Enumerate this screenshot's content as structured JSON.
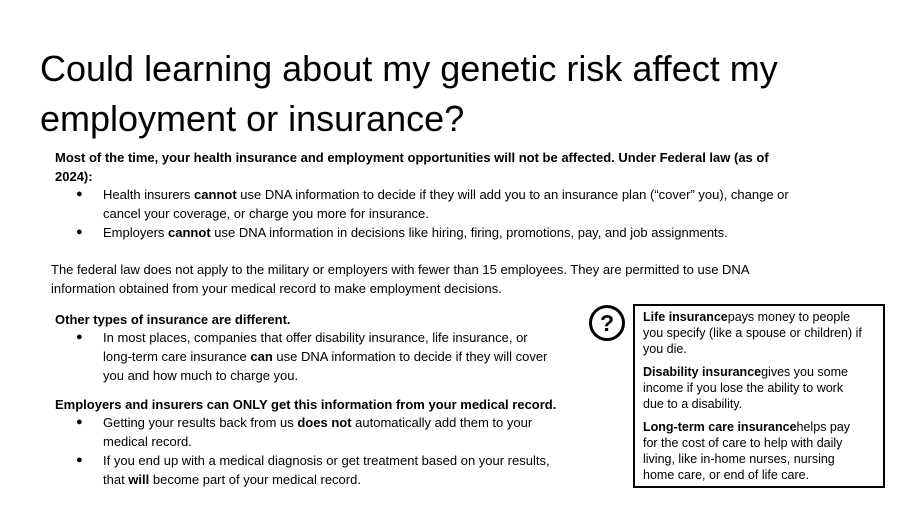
{
  "title": [
    "Could learning about my genetic risk affect my",
    "employment or insurance?"
  ],
  "intro": [
    "Most of the time, your health insurance and employment opportunities will not be affected. Under Federal law (as of",
    "2024):"
  ],
  "federal_bullets": [
    {
      "a": "Health insurers ",
      "b": "cannot",
      "c": " use DNA information to decide if they will add you to an insurance plan (“cover” you), change or"
    },
    {
      "a": "cancel your coverage, or charge you more for insurance.",
      "b": "",
      "c": ""
    },
    {
      "a": "Employers ",
      "b": "cannot",
      "c": " use DNA information in decisions like hiring, firing, promotions, pay, and job assignments."
    }
  ],
  "exception": [
    "The federal law does not apply to the military or employers with fewer than 15 employees. They are permitted to use DNA",
    "information obtained from your medical record to make employment decisions."
  ],
  "other_heading": "Other types of insurance are different.",
  "other_bullets": [
    {
      "a": "In most places, companies that offer disability insurance, life insurance, or",
      "b": "",
      "c": ""
    },
    {
      "a": "long-term care insurance ",
      "b": "can",
      "c": " use DNA information to decide if they will cover"
    },
    {
      "a": "you and how much to charge you.",
      "b": "",
      "c": ""
    }
  ],
  "record_heading": "Employers and insurers can ONLY get this information from your medical record.",
  "record_bullets": [
    {
      "a": "Getting your results back from us ",
      "b": "does not",
      "c": " automatically add them to your"
    },
    {
      "a": "medical record.",
      "b": "",
      "c": ""
    },
    {
      "a": "If you end up with a medical diagnosis or get treatment based on your results,",
      "b": "",
      "c": ""
    },
    {
      "a": "that ",
      "b": "will",
      "c": " become part of your medical record."
    }
  ],
  "bullet_char": "●",
  "help_icon": "question-circle-icon",
  "definitions": [
    {
      "term": "Life insurance",
      "lines": [
        "pays money to people",
        "you specify (like a spouse or children) if",
        "you die."
      ]
    },
    {
      "term": "Disability insurance",
      "lines": [
        "gives you some",
        "income if you lose the ability to work",
        "due to a disability."
      ]
    },
    {
      "term": "Long-term care insurance",
      "lines": [
        "helps pay",
        "for the cost of care to help with daily",
        "living, like in-home nurses, nursing",
        "home care, or end of life care."
      ]
    }
  ]
}
